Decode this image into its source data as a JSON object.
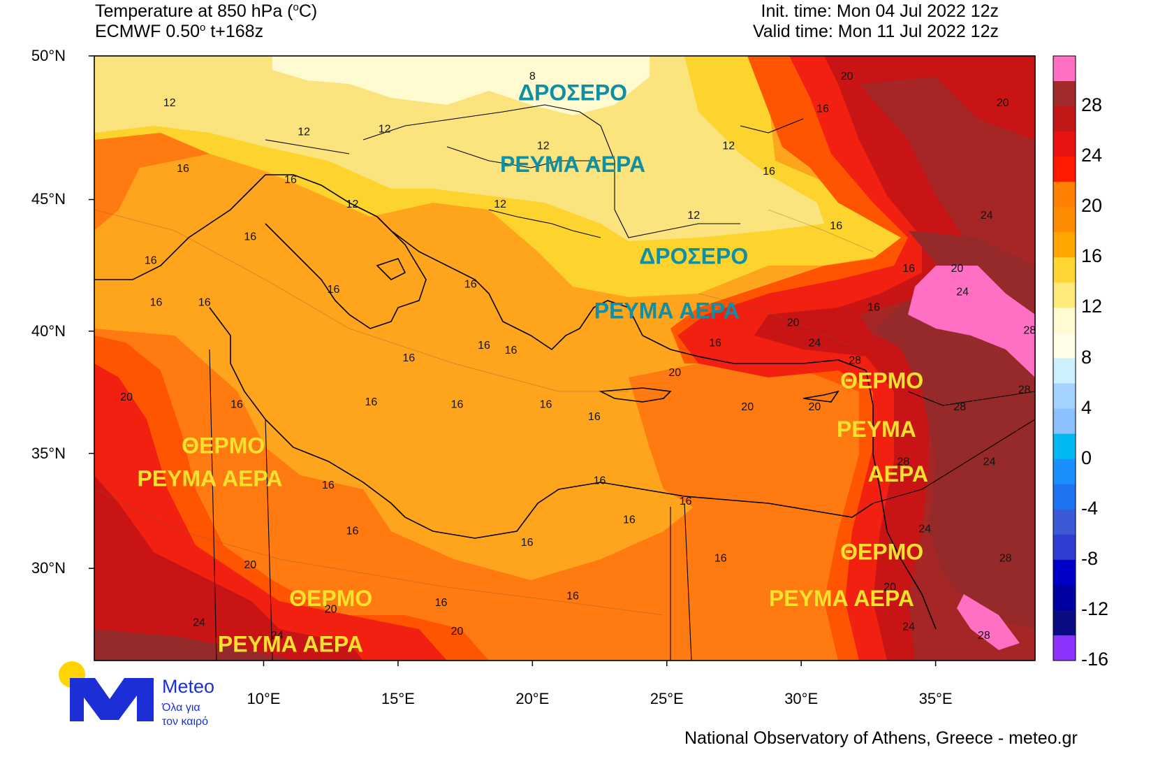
{
  "header": {
    "title_line1": "Temperature at 850 hPa (",
    "title_deg": "o",
    "title_unit": "C)",
    "model_line_a": "ECMWF 0.50",
    "model_deg": "o",
    "model_line_b": " t+168z",
    "init_time": "Init. time: Mon 04 Jul 2022 12z",
    "valid_time": "Valid time: Mon 11 Jul 2022 12z"
  },
  "axes": {
    "lat_labels": [
      {
        "text": "50°N",
        "lat": 50
      },
      {
        "text": "45°N",
        "lat": 45
      },
      {
        "text": "40°N",
        "lat": 40
      },
      {
        "text": "35°N",
        "lat": 35
      },
      {
        "text": "30°N",
        "lat": 30
      }
    ],
    "lon_labels": [
      {
        "text": "10°E",
        "lon": 10
      },
      {
        "text": "15°E",
        "lon": 15
      },
      {
        "text": "20°E",
        "lon": 20
      },
      {
        "text": "25°E",
        "lon": 25
      },
      {
        "text": "30°E",
        "lon": 30
      },
      {
        "text": "35°E",
        "lon": 35
      }
    ]
  },
  "colorbar": {
    "labels": [
      "28",
      "24",
      "20",
      "16",
      "12",
      "8",
      "4",
      "0",
      "-4",
      "-8",
      "-12",
      "-16"
    ],
    "colors": [
      "#ff6fc3",
      "#a12a2a",
      "#c21717",
      "#e81212",
      "#ff1a00",
      "#ff7f00",
      "#ff8c00",
      "#ffa500",
      "#ffd633",
      "#ffe97a",
      "#fffad0",
      "#fffce8",
      "#cdf0ff",
      "#a4d3ff",
      "#8cc1ff",
      "#00b9f2",
      "#1c8fff",
      "#1e74f0",
      "#3c5ad6",
      "#2f3ed0",
      "#0000c8",
      "#0000a0",
      "#0a0a82",
      "#8c32ff"
    ]
  },
  "map_annotations": {
    "cool_word": "ΔΡΟΣΕΡΟ",
    "stream_word": "ΡΕΥΜΑ ΑΕΡΑ",
    "warm_word": "ΘΕΡΜΟ",
    "stream_only": "ΡΕΥΜΑ",
    "air_only": "ΑΕΡΑ",
    "labels": [
      {
        "text": "ΔΡΟΣΕΡΟ",
        "lon": 21.5,
        "lat": 48.5,
        "color": "#0f8fa3"
      },
      {
        "text": "ΡΕΥΜΑ ΑΕΡΑ",
        "lon": 21.5,
        "lat": 46.0,
        "color": "#0f8fa3"
      },
      {
        "text": "ΔΡΟΣΕΡΟ",
        "lon": 26.0,
        "lat": 42.6,
        "color": "#0f8fa3"
      },
      {
        "text": "ΡΕΥΜΑ ΑΕΡΑ",
        "lon": 25.0,
        "lat": 40.5,
        "color": "#0f8fa3"
      },
      {
        "text": "ΘΕΡΜΟ",
        "lon": 8.5,
        "lat": 35.0,
        "color": "#f5e12e"
      },
      {
        "text": "ΡΕΥΜΑ ΑΕΡΑ",
        "lon": 8.0,
        "lat": 33.6,
        "color": "#f5e12e"
      },
      {
        "text": "ΘΕΡΜΟ",
        "lon": 33.0,
        "lat": 37.7,
        "color": "#f5e12e"
      },
      {
        "text": "ΡΕΥΜΑ",
        "lon": 32.8,
        "lat": 35.7,
        "color": "#f5e12e"
      },
      {
        "text": "ΑΕΡΑ",
        "lon": 33.6,
        "lat": 33.8,
        "color": "#f5e12e"
      },
      {
        "text": "ΘΕΡΜΟ",
        "lon": 33.0,
        "lat": 30.4,
        "color": "#f5e12e"
      },
      {
        "text": "ΡΕΥΜΑ ΑΕΡΑ",
        "lon": 31.5,
        "lat": 28.3,
        "color": "#f5e12e"
      },
      {
        "text": "ΘΕΡΜΟ",
        "lon": 12.5,
        "lat": 28.3,
        "color": "#f5e12e"
      },
      {
        "text": "ΡΕΥΜΑ ΑΕΡΑ",
        "lon": 11.0,
        "lat": 26.2,
        "color": "#f5e12e"
      }
    ],
    "contour_values": [
      {
        "v": "12",
        "lon": 6.5,
        "lat": 48.3
      },
      {
        "v": "12",
        "lon": 11.5,
        "lat": 47.3
      },
      {
        "v": "12",
        "lon": 14.5,
        "lat": 47.4
      },
      {
        "v": "8",
        "lon": 20.0,
        "lat": 49.2
      },
      {
        "v": "12",
        "lon": 20.4,
        "lat": 46.8
      },
      {
        "v": "12",
        "lon": 27.3,
        "lat": 46.8
      },
      {
        "v": "16",
        "lon": 28.8,
        "lat": 45.9
      },
      {
        "v": "16",
        "lon": 30.8,
        "lat": 48.1
      },
      {
        "v": "20",
        "lon": 31.7,
        "lat": 49.2
      },
      {
        "v": "20",
        "lon": 37.5,
        "lat": 48.3
      },
      {
        "v": "16",
        "lon": 7.0,
        "lat": 46.0
      },
      {
        "v": "16",
        "lon": 11.0,
        "lat": 45.6
      },
      {
        "v": "12",
        "lon": 13.3,
        "lat": 44.7
      },
      {
        "v": "12",
        "lon": 18.8,
        "lat": 44.7
      },
      {
        "v": "12",
        "lon": 26.0,
        "lat": 44.3
      },
      {
        "v": "16",
        "lon": 9.5,
        "lat": 43.5
      },
      {
        "v": "16",
        "lon": 31.3,
        "lat": 43.9
      },
      {
        "v": "24",
        "lon": 36.9,
        "lat": 44.3
      },
      {
        "v": "16",
        "lon": 5.8,
        "lat": 42.6
      },
      {
        "v": "16",
        "lon": 17.7,
        "lat": 41.7
      },
      {
        "v": "16",
        "lon": 34.0,
        "lat": 42.3
      },
      {
        "v": "20",
        "lon": 35.8,
        "lat": 42.3
      },
      {
        "v": "16",
        "lon": 12.6,
        "lat": 41.5
      },
      {
        "v": "16",
        "lon": 6.0,
        "lat": 41.0
      },
      {
        "v": "16",
        "lon": 7.8,
        "lat": 41.0
      },
      {
        "v": "24",
        "lon": 36.0,
        "lat": 41.4
      },
      {
        "v": "16",
        "lon": 32.7,
        "lat": 40.8
      },
      {
        "v": "20",
        "lon": 29.7,
        "lat": 40.2
      },
      {
        "v": "28",
        "lon": 38.5,
        "lat": 39.9
      },
      {
        "v": "16",
        "lon": 18.2,
        "lat": 39.3
      },
      {
        "v": "16",
        "lon": 19.2,
        "lat": 39.1
      },
      {
        "v": "16",
        "lon": 15.4,
        "lat": 38.8
      },
      {
        "v": "24",
        "lon": 30.5,
        "lat": 39.4
      },
      {
        "v": "16",
        "lon": 26.8,
        "lat": 39.4
      },
      {
        "v": "28",
        "lon": 32.0,
        "lat": 38.7
      },
      {
        "v": "20",
        "lon": 25.3,
        "lat": 38.2
      },
      {
        "v": "20",
        "lon": 4.9,
        "lat": 37.2
      },
      {
        "v": "16",
        "lon": 9.0,
        "lat": 36.9
      },
      {
        "v": "16",
        "lon": 14.0,
        "lat": 37.0
      },
      {
        "v": "16",
        "lon": 17.2,
        "lat": 36.9
      },
      {
        "v": "16",
        "lon": 20.5,
        "lat": 36.9
      },
      {
        "v": "20",
        "lon": 28.0,
        "lat": 36.8
      },
      {
        "v": "20",
        "lon": 30.5,
        "lat": 36.8
      },
      {
        "v": "28",
        "lon": 35.9,
        "lat": 36.8
      },
      {
        "v": "28",
        "lon": 38.3,
        "lat": 37.5
      },
      {
        "v": "16",
        "lon": 22.3,
        "lat": 36.4
      },
      {
        "v": "28",
        "lon": 33.8,
        "lat": 34.5
      },
      {
        "v": "24",
        "lon": 37.0,
        "lat": 34.5
      },
      {
        "v": "16",
        "lon": 22.5,
        "lat": 33.7
      },
      {
        "v": "16",
        "lon": 12.4,
        "lat": 33.5
      },
      {
        "v": "16",
        "lon": 25.7,
        "lat": 32.8
      },
      {
        "v": "16",
        "lon": 13.3,
        "lat": 31.5
      },
      {
        "v": "16",
        "lon": 23.6,
        "lat": 32.0
      },
      {
        "v": "24",
        "lon": 34.6,
        "lat": 31.6
      },
      {
        "v": "16",
        "lon": 19.8,
        "lat": 31.0
      },
      {
        "v": "16",
        "lon": 27.0,
        "lat": 30.3
      },
      {
        "v": "28",
        "lon": 37.6,
        "lat": 30.3
      },
      {
        "v": "20",
        "lon": 9.5,
        "lat": 30.0
      },
      {
        "v": "20",
        "lon": 33.3,
        "lat": 29.0
      },
      {
        "v": "16",
        "lon": 16.6,
        "lat": 28.3
      },
      {
        "v": "16",
        "lon": 21.5,
        "lat": 28.6
      },
      {
        "v": "20",
        "lon": 12.5,
        "lat": 28.0
      },
      {
        "v": "24",
        "lon": 7.6,
        "lat": 27.4
      },
      {
        "v": "20",
        "lon": 17.2,
        "lat": 27.0
      },
      {
        "v": "24",
        "lon": 10.5,
        "lat": 26.8
      },
      {
        "v": "24",
        "lon": 34.0,
        "lat": 27.2
      },
      {
        "v": "28",
        "lon": 36.8,
        "lat": 26.8
      }
    ]
  },
  "field": {
    "legend_colors": {
      "t8": "#fffad0",
      "t12": "#fbe47e",
      "t14": "#fdd42e",
      "t16": "#ffa51d",
      "t18": "#ff7a10",
      "t20": "#ff5500",
      "t22": "#f22010",
      "t24": "#c81414",
      "t26": "#a62525",
      "t28": "#962a2a",
      "t30": "#ff6fc3"
    }
  },
  "footer": {
    "credit": "National Observatory of Athens, Greece - meteo.gr"
  },
  "logo": {
    "word": "Meteo",
    "tagline_1": "Όλα για",
    "tagline_2": "τον καιρό",
    "sun_color": "#ffd400",
    "mark_color": "#1c2fd6"
  }
}
